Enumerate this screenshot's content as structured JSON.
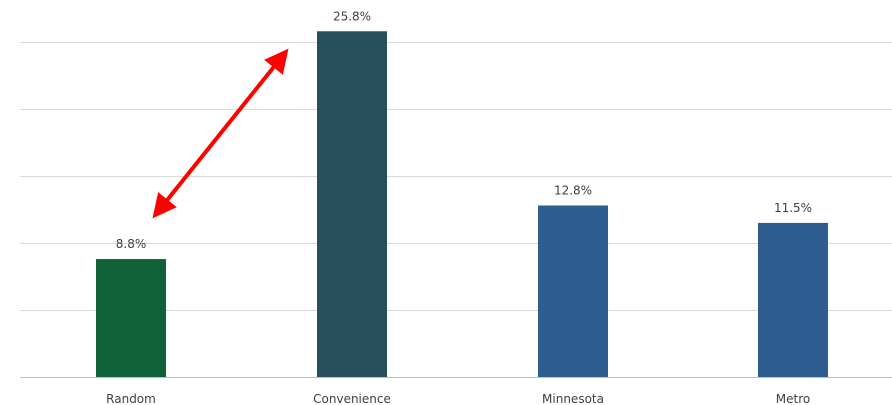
{
  "chart_data": {
    "type": "bar",
    "title": "",
    "xlabel": "",
    "ylabel": "",
    "categories": [
      "Random",
      "Convenience",
      "Minnesota",
      "Metro"
    ],
    "values": [
      8.8,
      25.8,
      12.8,
      11.5
    ],
    "value_labels": [
      "8.8%",
      "25.8%",
      "12.8%",
      "11.5%"
    ],
    "bar_colors": [
      "#0f6237",
      "#264e5c",
      "#2e5d92",
      "#2e5d92"
    ],
    "ylim": [
      0,
      30
    ],
    "y_gridlines": [
      0,
      5,
      10,
      15,
      20,
      25
    ],
    "y_tick_labels_visible": false,
    "grid": true,
    "legend": "none",
    "annotation": {
      "type": "double-headed-arrow",
      "color": "#ff0000",
      "between": [
        "Random",
        "Convenience"
      ]
    }
  }
}
